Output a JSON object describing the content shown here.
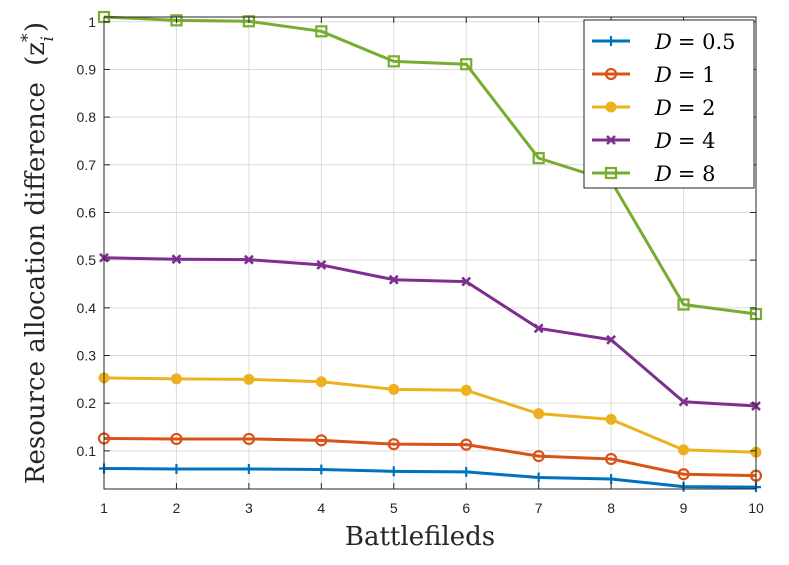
{
  "chart_data": {
    "type": "line",
    "title": "",
    "xlabel": "Battlefileds",
    "ylabel": "Resource allocation difference",
    "ylabel_symbol": "(z",
    "ylabel_sub": "i",
    "ylabel_sup": "*",
    "ylabel_close": ")",
    "xlim": [
      1,
      10
    ],
    "ylim": [
      0.02,
      1.01
    ],
    "x_ticks": [
      1,
      2,
      3,
      4,
      5,
      6,
      7,
      8,
      9,
      10
    ],
    "x_tick_labels": [
      "1",
      "2",
      "3",
      "4",
      "5",
      "6",
      "7",
      "8",
      "9",
      "10"
    ],
    "y_ticks": [
      0.1,
      0.2,
      0.3,
      0.4,
      0.5,
      0.6,
      0.7,
      0.8,
      0.9,
      1.0
    ],
    "y_tick_labels": [
      "0.1",
      "0.2",
      "0.3",
      "0.4",
      "0.5",
      "0.6",
      "0.7",
      "0.8",
      "0.9",
      "1"
    ],
    "grid": true,
    "legend_position": "top-right",
    "x": [
      1,
      2,
      3,
      4,
      5,
      6,
      7,
      8,
      9,
      10
    ],
    "series": [
      {
        "name": "D = 0.5",
        "legend_var": "D",
        "legend_value": "= 0.5",
        "color": "#0072bd",
        "marker": "plus",
        "values": [
          0.063,
          0.062,
          0.062,
          0.061,
          0.057,
          0.056,
          0.044,
          0.041,
          0.025,
          0.024
        ]
      },
      {
        "name": "D = 1",
        "legend_var": "D",
        "legend_value": "= 1",
        "color": "#d95319",
        "marker": "circle",
        "values": [
          0.126,
          0.125,
          0.125,
          0.122,
          0.114,
          0.113,
          0.089,
          0.083,
          0.051,
          0.048
        ]
      },
      {
        "name": "D = 2",
        "legend_var": "D",
        "legend_value": "= 2",
        "color": "#edb120",
        "marker": "dot",
        "values": [
          0.253,
          0.251,
          0.25,
          0.245,
          0.229,
          0.227,
          0.178,
          0.166,
          0.102,
          0.097
        ]
      },
      {
        "name": "D = 4",
        "legend_var": "D",
        "legend_value": "= 4",
        "color": "#7e2f8e",
        "marker": "cross",
        "values": [
          0.505,
          0.502,
          0.501,
          0.49,
          0.459,
          0.455,
          0.357,
          0.333,
          0.203,
          0.194
        ]
      },
      {
        "name": "D = 8",
        "legend_var": "D",
        "legend_value": "= 8",
        "color": "#77ac30",
        "marker": "square",
        "values": [
          1.01,
          1.003,
          1.001,
          0.98,
          0.917,
          0.911,
          0.714,
          0.666,
          0.407,
          0.387
        ]
      }
    ]
  }
}
